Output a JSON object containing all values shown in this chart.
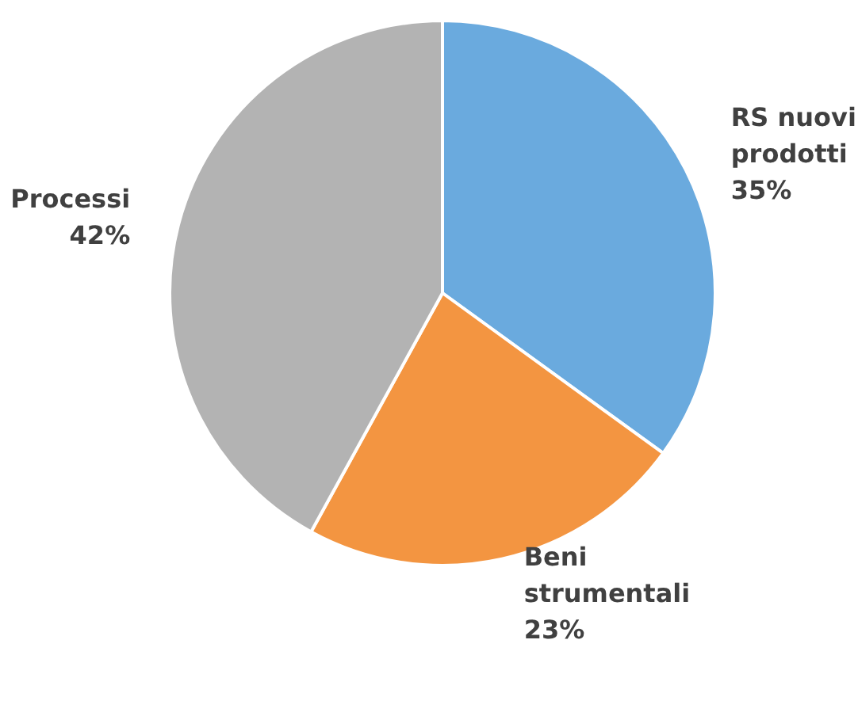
{
  "chart_data": {
    "type": "pie",
    "categories": [
      "RS nuovi prodotti",
      "Beni strumentali",
      "Processi"
    ],
    "values": [
      35,
      23,
      42
    ],
    "colors": [
      "#6aaade",
      "#f39541",
      "#b3b3b3"
    ],
    "value_labels": [
      "35%",
      "23%",
      "42%"
    ],
    "legend": false
  }
}
